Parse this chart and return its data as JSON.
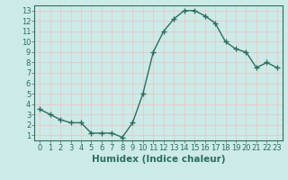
{
  "x": [
    0,
    1,
    2,
    3,
    4,
    5,
    6,
    7,
    8,
    9,
    10,
    11,
    12,
    13,
    14,
    15,
    16,
    17,
    18,
    19,
    20,
    21,
    22,
    23
  ],
  "y": [
    3.5,
    3.0,
    2.5,
    2.2,
    2.2,
    1.2,
    1.2,
    1.2,
    0.8,
    2.2,
    5.0,
    9.0,
    11.0,
    12.2,
    13.0,
    13.0,
    12.5,
    11.8,
    10.0,
    9.3,
    9.0,
    7.5,
    8.0,
    7.5
  ],
  "line_color": "#2d6e5e",
  "marker": "+",
  "marker_size": 4,
  "background_color": "#cceae7",
  "grid_color": "#e8c8c8",
  "xlabel": "Humidex (Indice chaleur)",
  "xlim": [
    -0.5,
    23.5
  ],
  "ylim": [
    0.5,
    13.5
  ],
  "yticks": [
    1,
    2,
    3,
    4,
    5,
    6,
    7,
    8,
    9,
    10,
    11,
    12,
    13
  ],
  "xticks": [
    0,
    1,
    2,
    3,
    4,
    5,
    6,
    7,
    8,
    9,
    10,
    11,
    12,
    13,
    14,
    15,
    16,
    17,
    18,
    19,
    20,
    21,
    22,
    23
  ],
  "tick_label_fontsize": 6,
  "xlabel_fontsize": 7.5,
  "axis_color": "#2d6e5e",
  "line_width": 1.0,
  "marker_edge_width": 1.0
}
